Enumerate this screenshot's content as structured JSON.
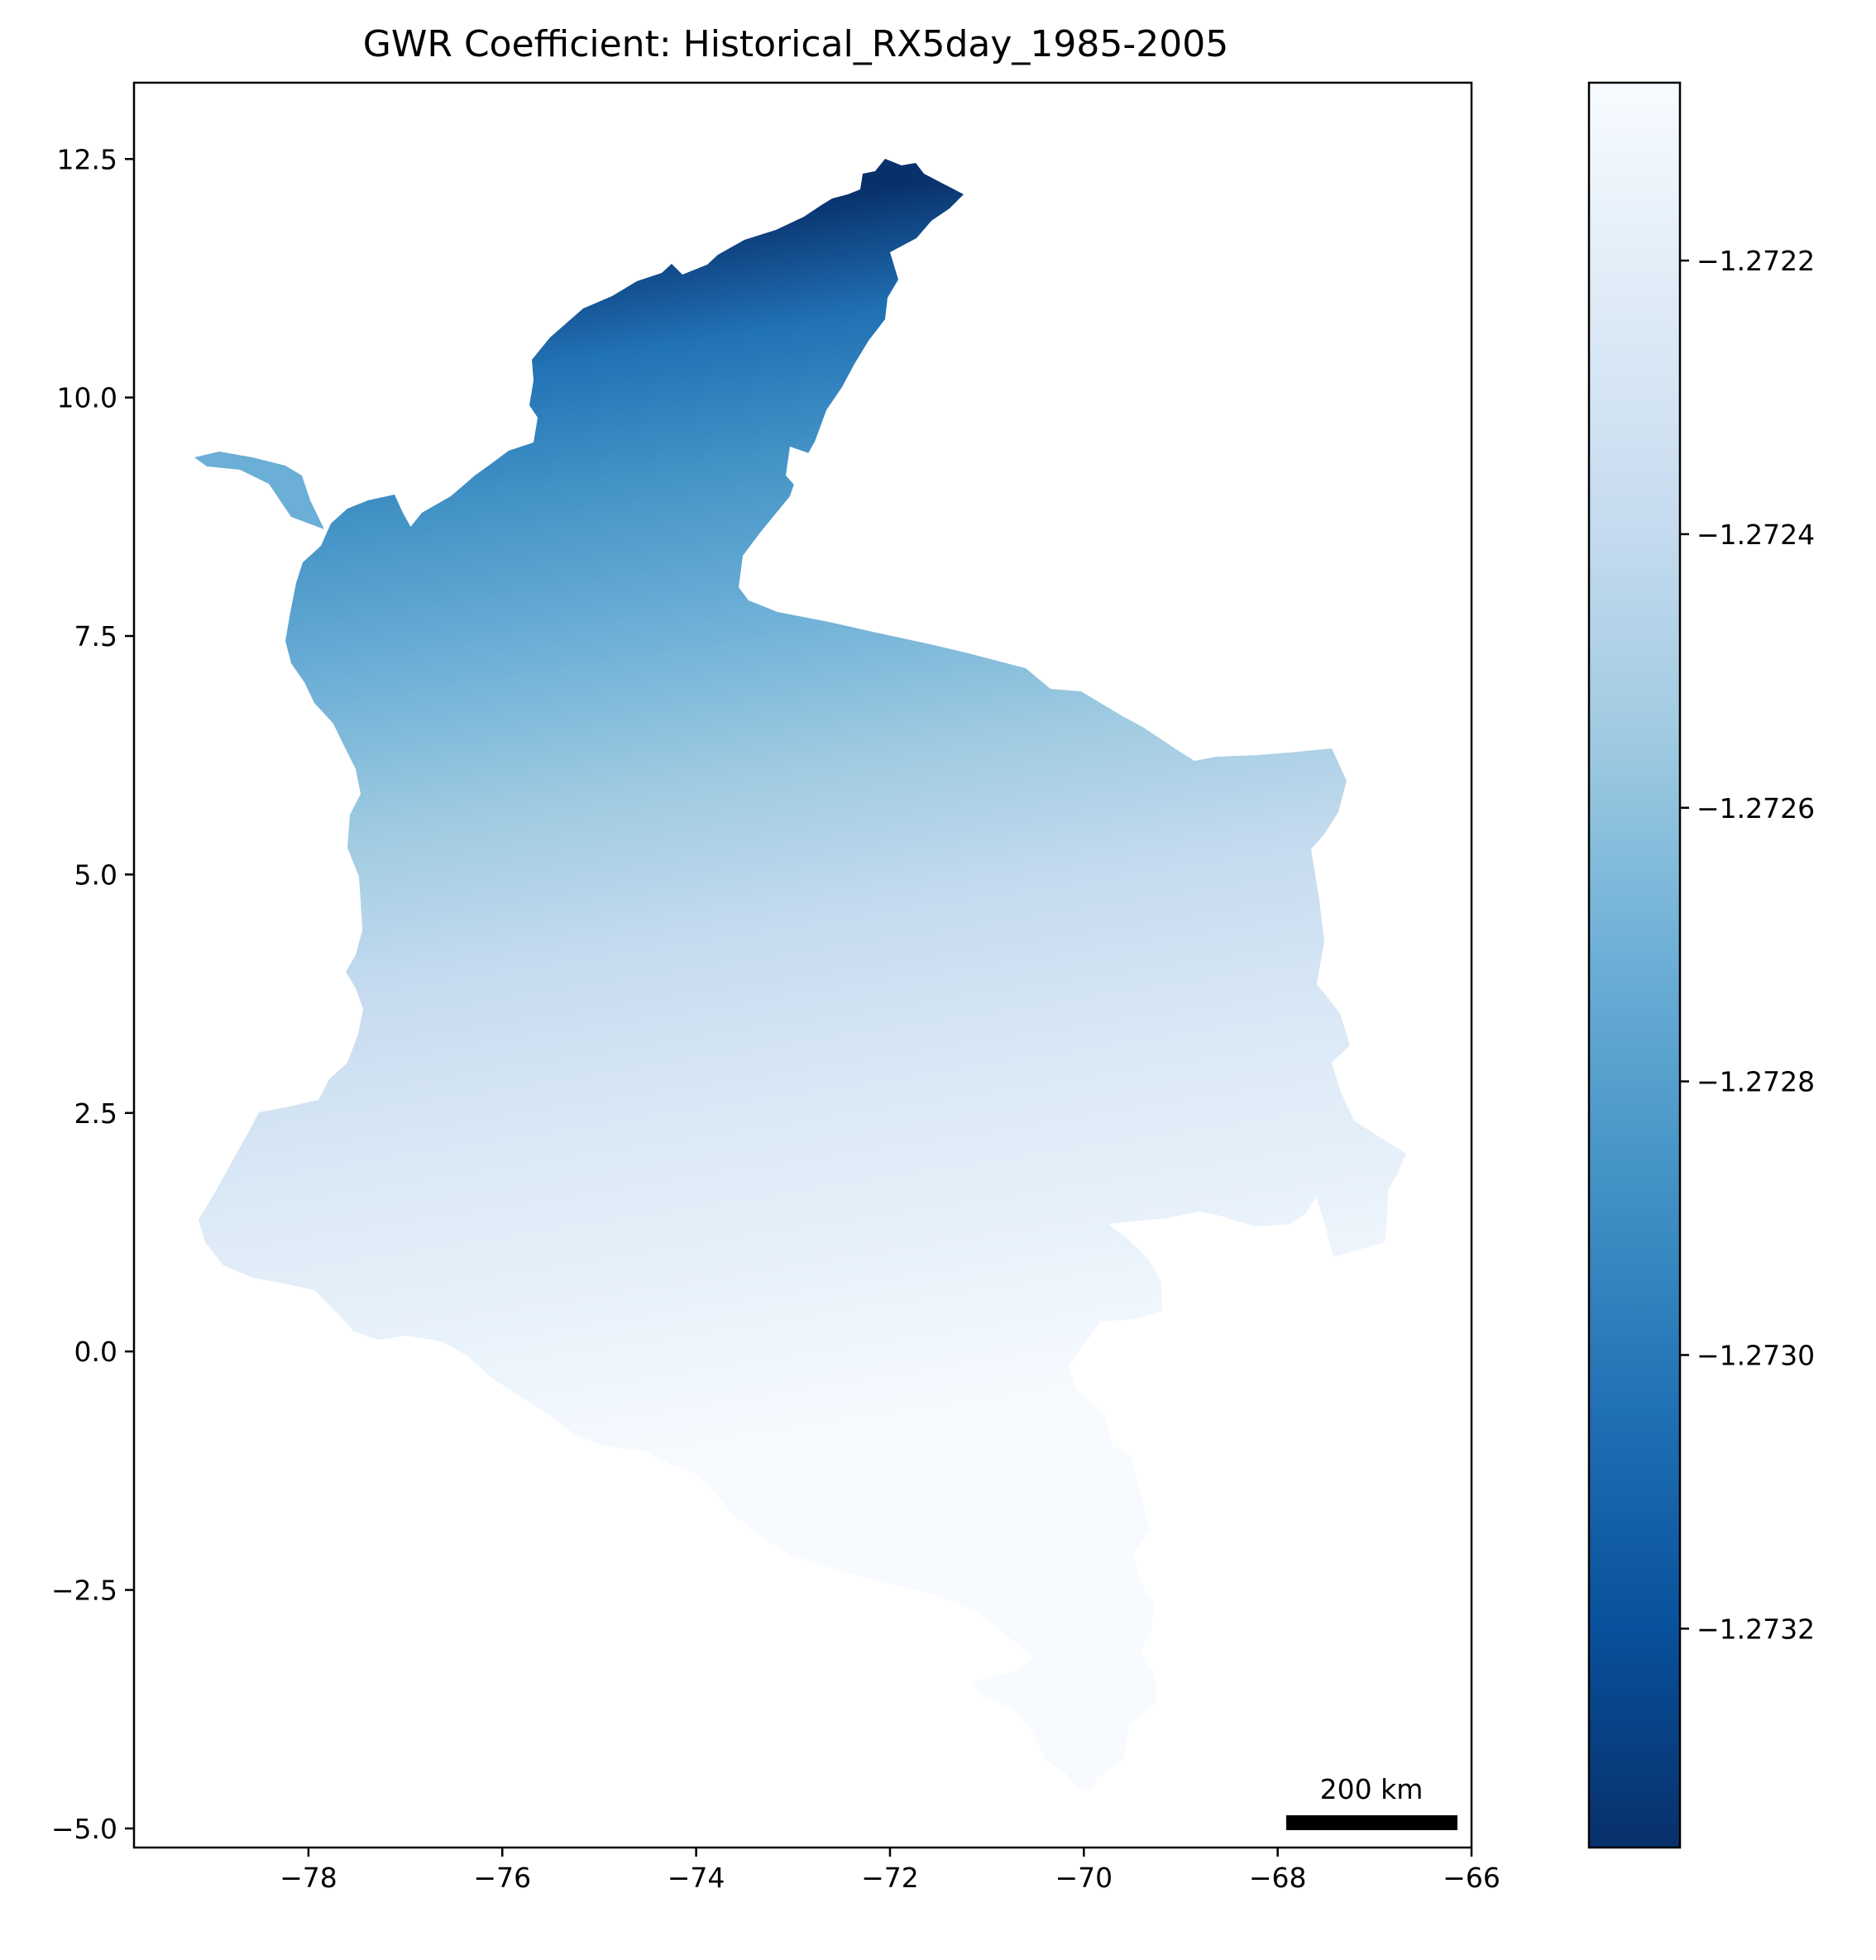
{
  "title": "GWR Coefficient: Historical_RX5day_1985-2005",
  "map": {
    "x_ticks": [
      "−78",
      "−76",
      "−74",
      "−72",
      "−70",
      "−68",
      "−66"
    ],
    "y_ticks": [
      "12.5",
      "10.0",
      "7.5",
      "5.0",
      "2.5",
      "0.0",
      "−2.5",
      "−5.0"
    ],
    "x_range": [
      -79.8,
      -66.0
    ],
    "y_range": [
      -5.2,
      13.3
    ]
  },
  "scale_bar": {
    "label": "200 km"
  },
  "colorbar": {
    "colormap": "Blues",
    "ticks": [
      "−1.2722",
      "−1.2724",
      "−1.2726",
      "−1.2728",
      "−1.2730",
      "−1.2732"
    ],
    "tick_values": [
      -1.2722,
      -1.2724,
      -1.2726,
      -1.2728,
      -1.273,
      -1.2732
    ],
    "range": [
      -1.27336,
      -1.27207
    ],
    "colors": [
      "#f7fbff",
      "#deebf7",
      "#c6dbef",
      "#9ecae1",
      "#6baed6",
      "#4292c6",
      "#2171b5",
      "#08519c",
      "#08306b"
    ]
  }
}
